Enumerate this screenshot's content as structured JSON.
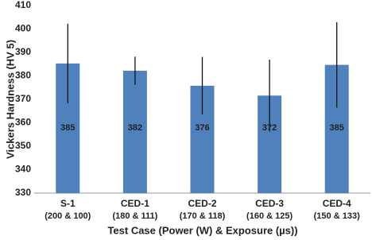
{
  "chart_data": {
    "type": "bar",
    "categories": [
      "S-1",
      "CED-1",
      "CED-2",
      "CED-3",
      "CED-4"
    ],
    "category_sublabels": [
      "(200 & 100)",
      "(180 & 111)",
      "(170 & 118)",
      "(160 & 125)",
      "(150 & 133)"
    ],
    "values": [
      385.3,
      382.2,
      375.8,
      371.6,
      384.7
    ],
    "value_labels": [
      "385",
      "382",
      "376",
      "372",
      "385"
    ],
    "errors": [
      17,
      6,
      12.3,
      15.3,
      18.2
    ],
    "color": "#4f81bd",
    "x_label": "Test Case (Power (W) & Exposure (µs))",
    "y_label": "Vickers Hardness (HV 5)",
    "ylim": [
      330,
      410
    ],
    "yticks": [
      330,
      340,
      350,
      360,
      370,
      380,
      390,
      400,
      410
    ],
    "grid": false
  }
}
